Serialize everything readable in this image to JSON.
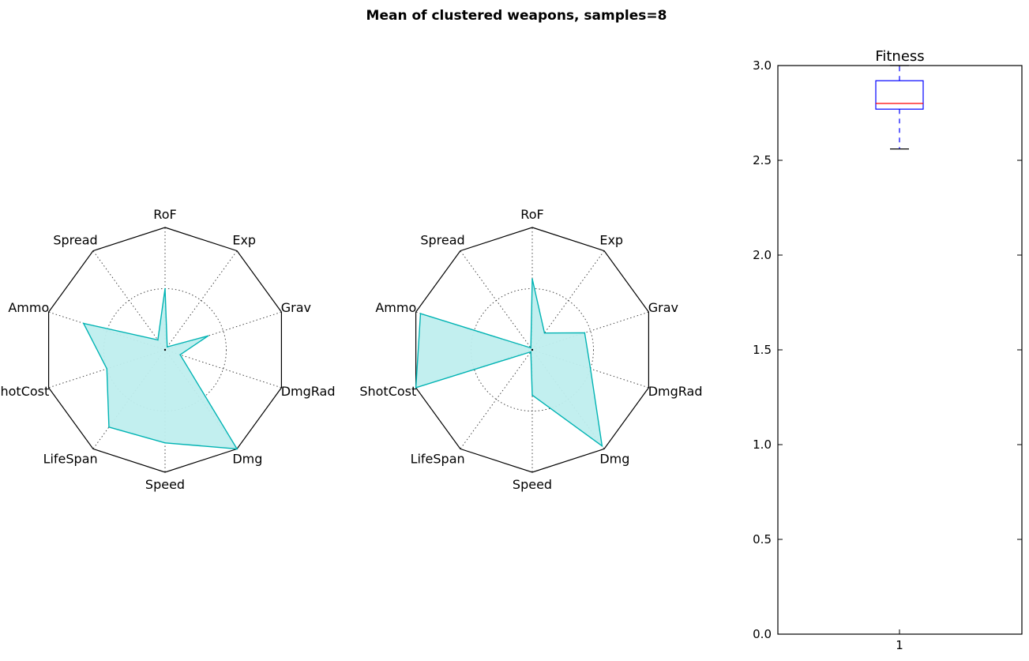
{
  "figure": {
    "title": "Mean of clustered weapons, samples=8"
  },
  "chart_data": [
    {
      "type": "radar",
      "axes": [
        "RoF",
        "Exp",
        "Grav",
        "DmgRad",
        "Dmg",
        "Speed",
        "LifeSpan",
        "ShotCost",
        "Ammo",
        "Spread"
      ],
      "rlim": [
        0,
        1
      ],
      "grid_rings": [
        0.5,
        1.0
      ],
      "grid": true,
      "fill_color": "#bfeeee",
      "line_color": "#00b3b3",
      "values": [
        0.5,
        0.03,
        0.37,
        0.13,
        1.0,
        0.76,
        0.78,
        0.5,
        0.7,
        0.1
      ]
    },
    {
      "type": "radar",
      "axes": [
        "RoF",
        "Exp",
        "Grav",
        "DmgRad",
        "Dmg",
        "Speed",
        "LifeSpan",
        "ShotCost",
        "Ammo",
        "Spread"
      ],
      "rlim": [
        0,
        1
      ],
      "grid_rings": [
        0.5,
        1.0
      ],
      "grid": true,
      "fill_color": "#bfeeee",
      "line_color": "#00b3b3",
      "values": [
        0.58,
        0.17,
        0.45,
        0.5,
        0.97,
        0.37,
        0.02,
        1.0,
        0.96,
        0.02
      ]
    },
    {
      "type": "box",
      "title": "Fitness",
      "categories": [
        "1"
      ],
      "ylim": [
        0,
        3
      ],
      "yticks": [
        "0.0",
        "0.5",
        "1.0",
        "1.5",
        "2.0",
        "2.5",
        "3.0"
      ],
      "whisker_low": 2.56,
      "q1": 2.77,
      "median": 2.8,
      "q3": 2.92,
      "whisker_high": 3.0,
      "box_color": "#0000ff",
      "median_color": "#ff0000"
    }
  ]
}
